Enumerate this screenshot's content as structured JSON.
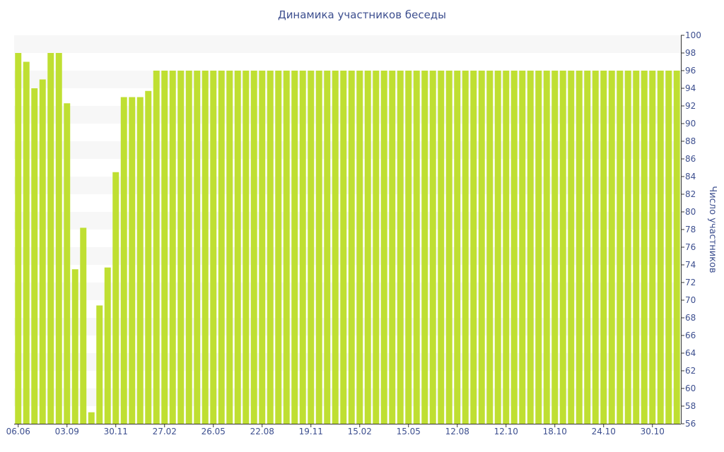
{
  "chart_data": {
    "type": "bar",
    "title": "Динамика участников беседы",
    "ylabel": "Число участников",
    "ylim": [
      56,
      100
    ],
    "ytick_step": 2,
    "y_axis_side": "right",
    "grid": "horizontal bands",
    "bar_color": "#bfdf32",
    "band_color": "#f7f7f7",
    "text_color": "#3d4f8f",
    "x_tick_labels": [
      "06.06",
      "03.09",
      "30.11",
      "27.02",
      "26.05",
      "22.08",
      "19.11",
      "15.02",
      "15.05",
      "12.08",
      "12.10",
      "18.10",
      "24.10",
      "30.10"
    ],
    "x_tick_indices": [
      0,
      6,
      12,
      18,
      24,
      30,
      36,
      42,
      48,
      54,
      60,
      66,
      72,
      78
    ],
    "values": [
      98,
      97,
      94,
      95,
      98,
      98,
      92.3,
      73.5,
      78.2,
      57.3,
      69.4,
      73.7,
      84.5,
      93,
      93,
      93,
      93.7,
      96,
      96,
      96,
      96,
      96,
      96,
      96,
      96,
      96,
      96,
      96,
      96,
      96,
      96,
      96,
      96,
      96,
      96,
      96,
      96,
      96,
      96,
      96,
      96,
      96,
      96,
      96,
      96,
      96,
      96,
      96,
      96,
      96,
      96,
      96,
      96,
      96,
      96,
      96,
      96,
      96,
      96,
      96,
      96,
      96,
      96,
      96,
      96,
      96,
      96,
      96,
      96,
      96,
      96,
      96,
      96,
      96,
      96,
      96,
      96,
      96,
      96,
      96,
      96,
      96
    ]
  }
}
